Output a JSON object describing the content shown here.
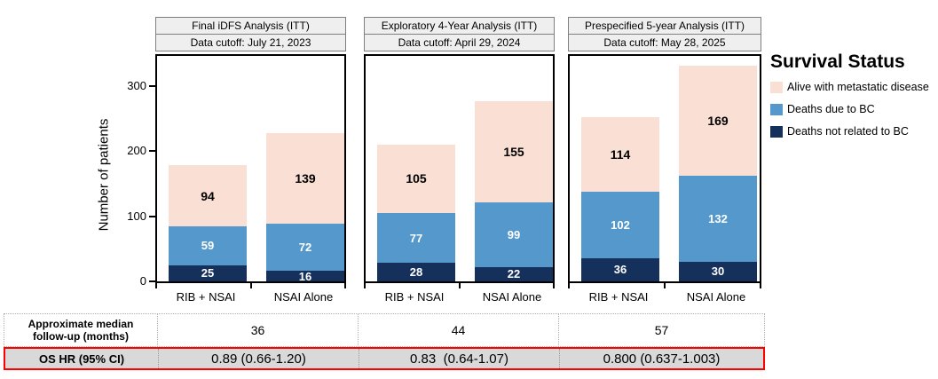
{
  "chart_data": {
    "type": "bar",
    "stacked": true,
    "y_axis": {
      "label": "Number of patients",
      "ticks": [
        0,
        100,
        200,
        300
      ],
      "max_displayed": 347
    },
    "categories": [
      "RIB + NSAI",
      "NSAI Alone"
    ],
    "seg_order": [
      "deaths_not_bc",
      "deaths_bc",
      "alive_met"
    ],
    "colors": {
      "deaths_not_bc": "#16305C",
      "deaths_bc": "#5599CC",
      "alive_met": "#FAE0D4",
      "header_fill": "#EFEFEF",
      "header_border": "#7F7F7F",
      "hr_row_fill": "#D9D9D9",
      "hr_row_border": "#FF0000"
    },
    "legend": {
      "title": "Survival Status",
      "items": [
        {
          "key": "alive_met",
          "label": "Alive with metastatic disease",
          "color": "#FAE0D4"
        },
        {
          "key": "deaths_bc",
          "label": "Deaths due to BC",
          "color": "#5599CC"
        },
        {
          "key": "deaths_not_bc",
          "label": "Deaths not related to BC",
          "color": "#16305C"
        }
      ]
    },
    "panels": [
      {
        "title": "Final iDFS Analysis (ITT)",
        "cutoff": "Data cutoff: July 21, 2023",
        "bars": [
          {
            "category": "RIB + NSAI",
            "segments": {
              "deaths_not_bc": 25,
              "deaths_bc": 59,
              "alive_met": 94
            }
          },
          {
            "category": "NSAI Alone",
            "segments": {
              "deaths_not_bc": 16,
              "deaths_bc": 72,
              "alive_met": 139
            }
          }
        ],
        "median_followup_months": "36",
        "os_hr": "0.89 (0.66-1.20)"
      },
      {
        "title": "Exploratory 4-Year Analysis (ITT)",
        "cutoff": "Data cutoff: April 29, 2024",
        "bars": [
          {
            "category": "RIB + NSAI",
            "segments": {
              "deaths_not_bc": 28,
              "deaths_bc": 77,
              "alive_met": 105
            }
          },
          {
            "category": "NSAI Alone",
            "segments": {
              "deaths_not_bc": 22,
              "deaths_bc": 99,
              "alive_met": 155
            }
          }
        ],
        "median_followup_months": "44",
        "os_hr": "0.83  (0.64-1.07)"
      },
      {
        "title": "Prespecified 5-year Analysis (ITT)",
        "cutoff": "Data cutoff: May 28, 2025",
        "bars": [
          {
            "category": "RIB + NSAI",
            "segments": {
              "deaths_not_bc": 36,
              "deaths_bc": 102,
              "alive_met": 114
            }
          },
          {
            "category": "NSAI Alone",
            "segments": {
              "deaths_not_bc": 30,
              "deaths_bc": 132,
              "alive_met": 169
            }
          }
        ],
        "median_followup_months": "57",
        "os_hr": "0.800 (0.637-1.003)"
      }
    ],
    "table": {
      "row1_label_lines": [
        "Approximate median",
        "follow-up (months)"
      ],
      "row2_label": "OS HR (95% CI)"
    }
  }
}
